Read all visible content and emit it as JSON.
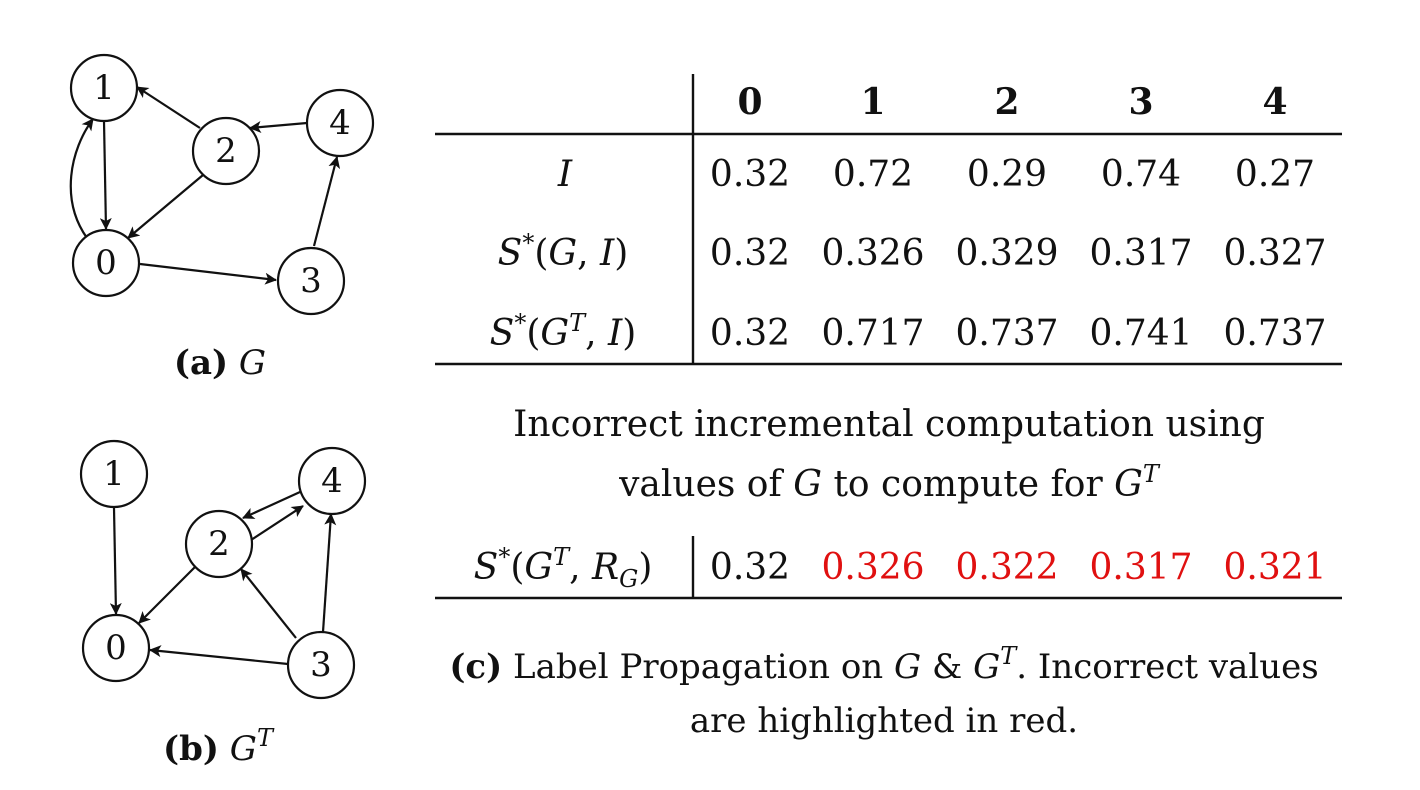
{
  "graph_g": {
    "caption_label": "(a)",
    "caption_symbol": "G",
    "nodes": [
      "0",
      "1",
      "2",
      "3",
      "4"
    ]
  },
  "graph_gt": {
    "caption_label": "(b)",
    "caption_symbol": "G",
    "caption_superscript": "T",
    "nodes": [
      "0",
      "1",
      "2",
      "3",
      "4"
    ]
  },
  "table": {
    "column_headers": [
      "0",
      "1",
      "2",
      "3",
      "4"
    ],
    "rows": [
      {
        "label": "I",
        "values": [
          "0.32",
          "0.72",
          "0.29",
          "0.74",
          "0.27"
        ]
      },
      {
        "label": "S*(G, I)",
        "values": [
          "0.32",
          "0.326",
          "0.329",
          "0.317",
          "0.327"
        ]
      },
      {
        "label": "S*(G^T, I)",
        "values": [
          "0.32",
          "0.717",
          "0.737",
          "0.741",
          "0.737"
        ]
      }
    ],
    "middle_note_line1": "Incorrect incremental computation using",
    "middle_note_line2_pre": "values of ",
    "middle_note_line2_g": "G",
    "middle_note_line2_mid": " to compute for ",
    "middle_note_line2_gt": "G",
    "middle_note_line2_sup": "T",
    "incremental_row": {
      "label": "S*(G^T, R_G)",
      "values": [
        "0.32",
        "0.326",
        "0.322",
        "0.317",
        "0.321"
      ],
      "incorrect": [
        false,
        true,
        true,
        true,
        true
      ]
    },
    "highlight_color": "#e01010"
  },
  "caption_c": {
    "label": "(c)",
    "line1_pre": " Label Propagation on ",
    "g": "G",
    "amp": " & ",
    "gt": "G",
    "sup": "T",
    "line1_post": ". Incorrect values",
    "line2": "are highlighted in red."
  }
}
